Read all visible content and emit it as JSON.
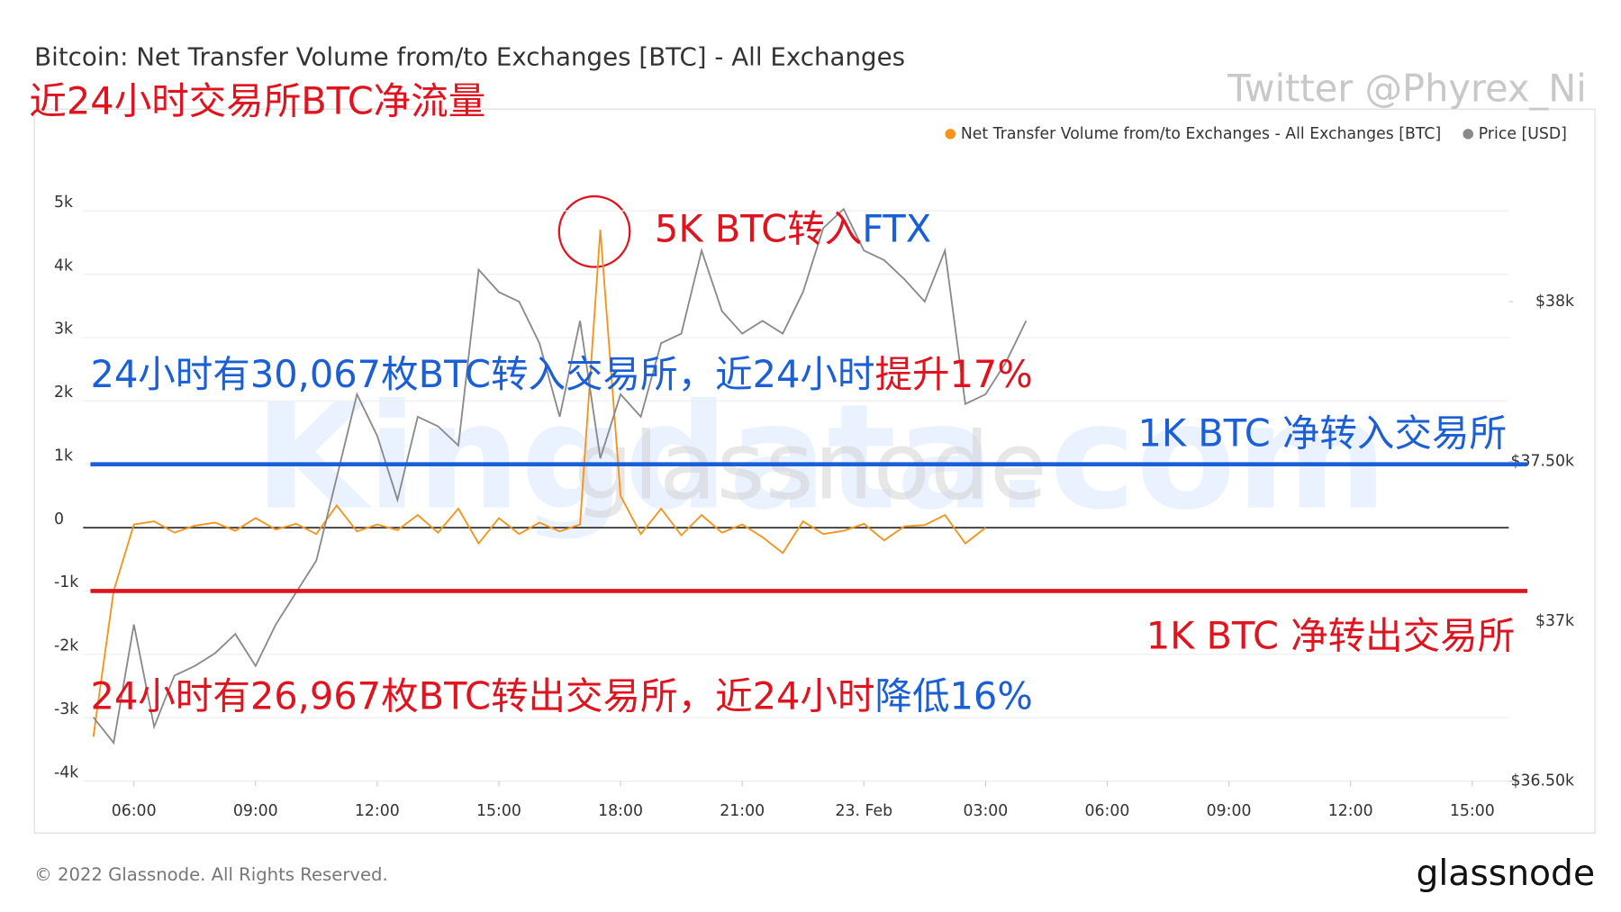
{
  "chart_data": {
    "type": "line",
    "title": "Bitcoin: Net Transfer Volume from/to Exchanges [BTC] - All Exchanges",
    "subtitle": "近24小时交易所BTC净流量",
    "watermarks": [
      "Twitter @Phyrex_Ni",
      "Kingdata.com",
      "glassnode"
    ],
    "footer": "© 2022 Glassnode. All Rights Reserved.",
    "logo": "glassnode",
    "x": [
      5,
      5.5,
      6,
      6.5,
      7,
      7.5,
      8,
      8.5,
      9,
      9.5,
      10,
      10.5,
      11,
      11.5,
      12,
      12.5,
      13,
      13.5,
      14,
      14.5,
      15,
      15.5,
      16,
      16.5,
      17,
      17.5,
      18,
      18.5,
      19,
      19.5,
      20,
      20.5,
      21,
      21.5,
      22,
      22.5,
      23,
      23.5,
      24,
      24.5,
      25,
      25.5,
      26,
      26.5,
      27,
      27.5,
      28
    ],
    "xlim": [
      4.75,
      39.9
    ],
    "xticks": [
      {
        "value": 6,
        "label": "06:00"
      },
      {
        "value": 9,
        "label": "09:00"
      },
      {
        "value": 12,
        "label": "12:00"
      },
      {
        "value": 15,
        "label": "15:00"
      },
      {
        "value": 18,
        "label": "18:00"
      },
      {
        "value": 21,
        "label": "21:00"
      },
      {
        "value": 24,
        "label": "23. Feb"
      },
      {
        "value": 27,
        "label": "03:00"
      },
      {
        "value": 30,
        "label": "06:00"
      },
      {
        "value": 33,
        "label": "09:00"
      },
      {
        "value": 36,
        "label": "12:00"
      },
      {
        "value": 39,
        "label": "15:00"
      }
    ],
    "ylim": [
      -4000,
      5130
    ],
    "yticks": [
      {
        "value": -4000,
        "label": "-4k"
      },
      {
        "value": -3000,
        "label": "-3k"
      },
      {
        "value": -2000,
        "label": "-2k"
      },
      {
        "value": -1000,
        "label": "-1k"
      },
      0,
      {
        "value": 1000,
        "label": "1k"
      },
      {
        "value": 2000,
        "label": "2k"
      },
      {
        "value": 3000,
        "label": "3k"
      },
      {
        "value": 4000,
        "label": "4k"
      },
      {
        "value": 5000,
        "label": "5k"
      }
    ],
    "y2lim": [
      36500,
      38310
    ],
    "y2ticks": [
      {
        "value": 36500,
        "label": "$36.50k"
      },
      {
        "value": 37000,
        "label": "$37k"
      },
      {
        "value": 37500,
        "label": "$37.50k"
      },
      {
        "value": 38000,
        "label": "$38k"
      }
    ],
    "grid": true,
    "legend": "top-right",
    "series": [
      {
        "name": "Net Transfer Volume from/to Exchanges - All Exchanges [BTC]",
        "color": "#f7931a",
        "values": [
          -3300,
          -1000,
          50,
          100,
          -80,
          30,
          80,
          -50,
          150,
          -30,
          60,
          -100,
          350,
          -60,
          50,
          -40,
          200,
          -80,
          300,
          -250,
          150,
          -100,
          80,
          -60,
          50,
          4700,
          500,
          -100,
          300,
          -120,
          200,
          -80,
          50,
          -150,
          -400,
          100,
          -100,
          -50,
          60,
          -200,
          20,
          40,
          200,
          -250,
          0,
          null,
          null
        ]
      },
      {
        "name": "Price [USD]",
        "color": "#8a8a8a",
        "axis": "y2",
        "values": [
          36700,
          36620,
          36990,
          36670,
          36830,
          36860,
          36900,
          36960,
          36860,
          36990,
          37090,
          37190,
          37450,
          37710,
          37580,
          37380,
          37640,
          37610,
          37550,
          38100,
          38030,
          38000,
          37870,
          37640,
          37940,
          37510,
          37710,
          37640,
          37870,
          37900,
          38160,
          37970,
          37900,
          37940,
          37900,
          38030,
          38230,
          38290,
          38160,
          38130,
          38070,
          38000,
          38160,
          37680,
          37710,
          37810,
          37940
        ]
      }
    ],
    "reference_lines": [
      {
        "value": 1000,
        "color": "#1a5fd6",
        "label": "1K BTC 净转入交易所"
      },
      {
        "value": -1000,
        "color": "#e0141e",
        "label": "1K BTC 净转出交易所"
      }
    ],
    "annotations": [
      {
        "parts": [
          {
            "text": "5K BTC转入",
            "color": "#e0141e"
          },
          {
            "text": "FTX",
            "color": "#1a5fd6"
          }
        ]
      },
      {
        "parts": [
          {
            "text": "24小时有30,067枚BTC转入交易所，近24小时",
            "color": "#1a5fd6"
          },
          {
            "text": "提升17%",
            "color": "#e0141e"
          }
        ]
      },
      {
        "parts": [
          {
            "text": "24小时有26,967枚BTC转出交易所，近24小时",
            "color": "#e0141e"
          },
          {
            "text": "降低16%",
            "color": "#1a5fd6"
          }
        ]
      }
    ]
  }
}
